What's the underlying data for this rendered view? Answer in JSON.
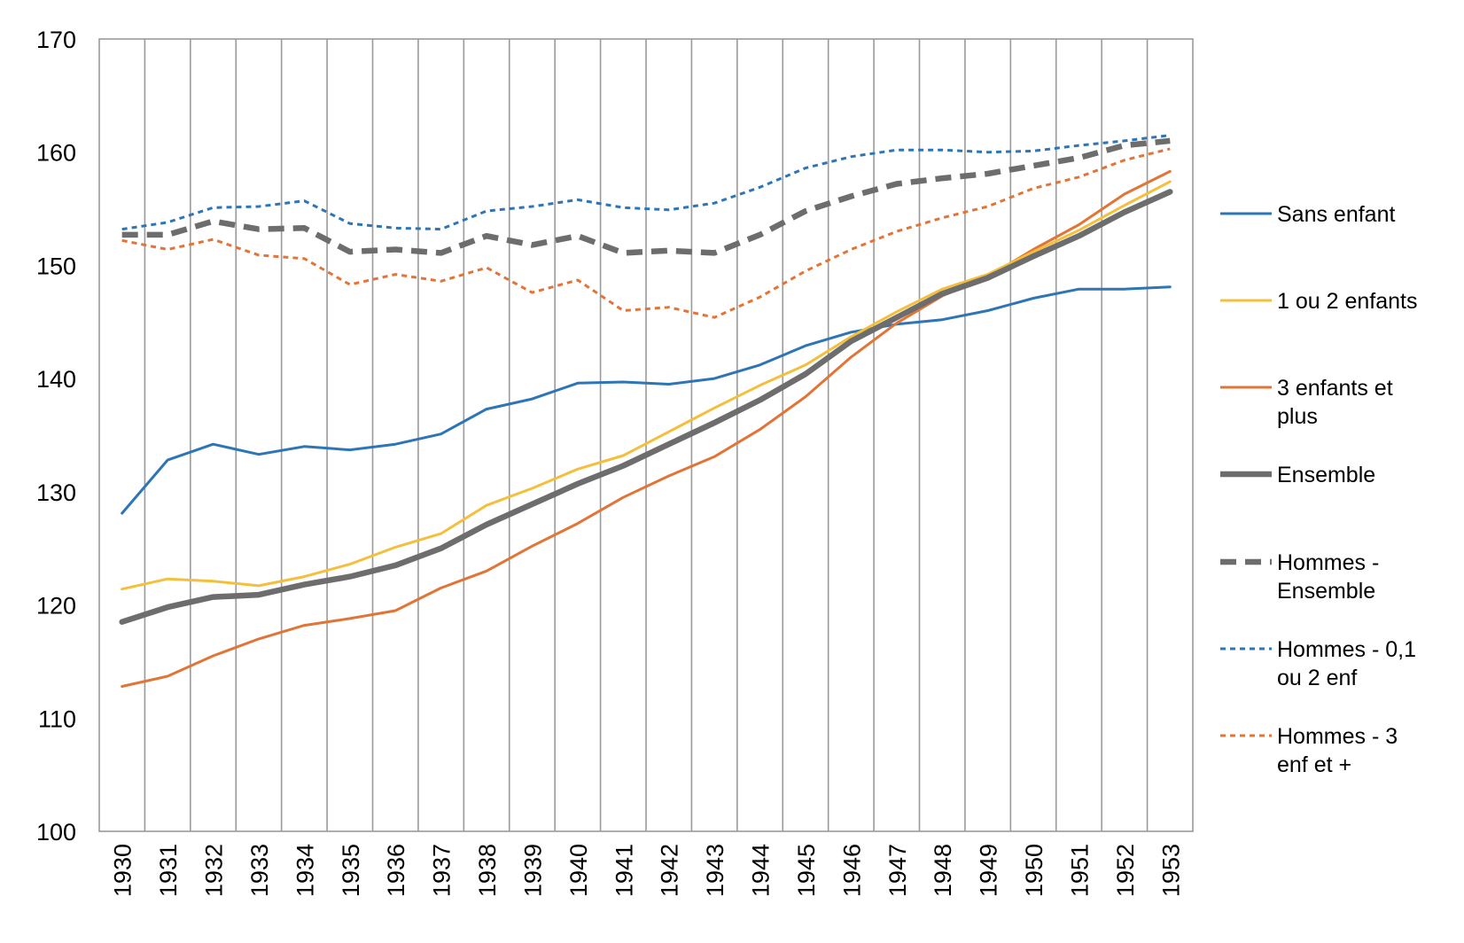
{
  "chart_data": {
    "type": "line",
    "title": "",
    "xlabel": "",
    "ylabel": "",
    "ylim": [
      100,
      170
    ],
    "yticks": [
      100,
      110,
      120,
      130,
      140,
      150,
      160,
      170
    ],
    "grid": {
      "vertical": true,
      "horizontal": false
    },
    "legend_position": "right",
    "x": [
      "1930",
      "1931",
      "1932",
      "1933",
      "1934",
      "1935",
      "1936",
      "1937",
      "1938",
      "1939",
      "1940",
      "1941",
      "1942",
      "1943",
      "1944",
      "1945",
      "1946",
      "1947",
      "1948",
      "1949",
      "1950",
      "1951",
      "1952",
      "1953"
    ],
    "series": [
      {
        "name": "Sans enfant",
        "color": "#2e75b6",
        "style": "solid",
        "values": [
          128.1,
          132.8,
          134.2,
          133.3,
          134.0,
          133.7,
          134.2,
          135.1,
          137.3,
          138.2,
          139.6,
          139.7,
          139.5,
          140.0,
          141.2,
          142.9,
          144.1,
          144.8,
          145.2,
          146.0,
          147.1,
          147.9,
          147.9,
          148.1
        ]
      },
      {
        "name": "1 ou 2 enfants",
        "color": "#f4bf3c",
        "style": "solid",
        "values": [
          121.4,
          122.3,
          122.1,
          121.7,
          122.5,
          123.6,
          125.1,
          126.3,
          128.8,
          130.3,
          132.0,
          133.2,
          135.3,
          137.4,
          139.4,
          141.2,
          143.7,
          145.9,
          147.9,
          149.2,
          151.2,
          153.1,
          155.3,
          157.4
        ]
      },
      {
        "name": "3 enfants et plus",
        "color": "#e07537",
        "style": "solid",
        "values": [
          112.8,
          113.7,
          115.5,
          117.0,
          118.2,
          118.8,
          119.5,
          121.5,
          123.0,
          125.2,
          127.2,
          129.5,
          131.4,
          133.1,
          135.5,
          138.4,
          141.9,
          144.9,
          147.3,
          149.0,
          151.4,
          153.6,
          156.3,
          158.3
        ]
      },
      {
        "name": "Ensemble",
        "color": "#6d6d6d",
        "style": "thick",
        "values": [
          118.5,
          119.8,
          120.7,
          120.9,
          121.8,
          122.5,
          123.5,
          125.0,
          127.1,
          128.9,
          130.7,
          132.3,
          134.2,
          136.1,
          138.1,
          140.4,
          143.3,
          145.4,
          147.5,
          148.9,
          150.8,
          152.6,
          154.7,
          156.5
        ]
      },
      {
        "name": "Hommes - Ensemble",
        "color": "#6d6d6d",
        "style": "thick-dashed",
        "values": [
          152.7,
          152.7,
          153.9,
          153.2,
          153.3,
          151.2,
          151.4,
          151.1,
          152.6,
          151.8,
          152.6,
          151.1,
          151.3,
          151.1,
          152.7,
          154.8,
          156.1,
          157.2,
          157.7,
          158.1,
          158.8,
          159.5,
          160.6,
          161.0
        ]
      },
      {
        "name": "Hommes - 0,1 ou 2 enf",
        "color": "#2e75b6",
        "style": "dashed",
        "values": [
          153.2,
          153.8,
          155.1,
          155.2,
          155.7,
          153.7,
          153.3,
          153.2,
          154.8,
          155.2,
          155.8,
          155.1,
          154.9,
          155.5,
          156.9,
          158.6,
          159.6,
          160.2,
          160.2,
          160.0,
          160.1,
          160.6,
          161.0,
          161.5
        ]
      },
      {
        "name": "Hommes - 3 enf et +",
        "color": "#e07537",
        "style": "dashed",
        "values": [
          152.2,
          151.4,
          152.3,
          150.9,
          150.6,
          148.3,
          149.2,
          148.6,
          149.8,
          147.6,
          148.7,
          146.0,
          146.3,
          145.4,
          147.2,
          149.5,
          151.4,
          153.0,
          154.2,
          155.2,
          156.8,
          157.8,
          159.3,
          160.3
        ]
      }
    ]
  }
}
